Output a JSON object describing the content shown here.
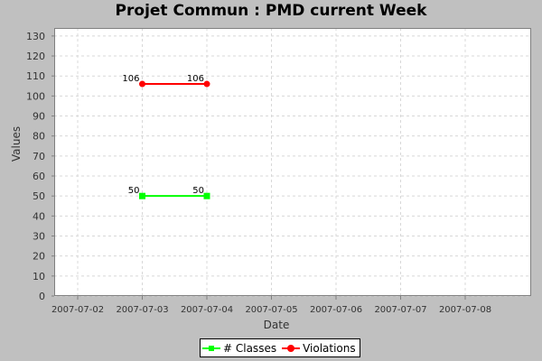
{
  "chart_data": {
    "type": "line",
    "title": "Projet Commun : PMD current Week",
    "xlabel": "Date",
    "ylabel": "Values",
    "x_ticks": [
      "2007-07-02",
      "2007-07-03",
      "2007-07-04",
      "2007-07-05",
      "2007-07-06",
      "2007-07-07",
      "2007-07-08"
    ],
    "y_ticks": [
      0,
      10,
      20,
      30,
      40,
      50,
      60,
      70,
      80,
      90,
      100,
      110,
      120,
      130
    ],
    "ylim": [
      0,
      134
    ],
    "grid": true,
    "legend_position": "bottom",
    "series": [
      {
        "name": "# Classes",
        "color": "#00ff00",
        "marker": "square",
        "points": [
          {
            "x": "2007-07-03",
            "y": 50,
            "label": "50"
          },
          {
            "x": "2007-07-04",
            "y": 50,
            "label": "50"
          }
        ]
      },
      {
        "name": "Violations",
        "color": "#ff0000",
        "marker": "circle",
        "points": [
          {
            "x": "2007-07-03",
            "y": 106,
            "label": "106"
          },
          {
            "x": "2007-07-04",
            "y": 106,
            "label": "106"
          }
        ]
      }
    ]
  }
}
